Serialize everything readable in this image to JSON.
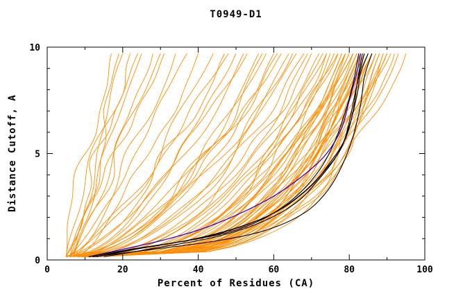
{
  "chart_data": {
    "type": "line",
    "title": "T0949-D1",
    "xlabel": "Percent of Residues (CA)",
    "ylabel": "Distance Cutoff, A",
    "xlim": [
      0,
      100
    ],
    "ylim": [
      0,
      10
    ],
    "xticks_major": [
      0,
      20,
      40,
      60,
      80,
      100
    ],
    "xticks_minor": [
      10,
      30,
      50,
      70,
      90
    ],
    "yticks_major": [
      0,
      5,
      10
    ],
    "yticks_minor": [
      1,
      2,
      3,
      4,
      6,
      7,
      8,
      9
    ],
    "grid": false,
    "legend": null,
    "colors": {
      "orange_curves": "#FF8C00",
      "black_curves": "#000000",
      "blue_curve": "#3300CC",
      "axis": "#000000",
      "text": "#000000",
      "background": "#FFFFFF"
    },
    "y_start": 0.15,
    "y_end": 9.7,
    "orange_param_format": "[percent_at_cutoff_0, percent_at_cutoff_10, shape_exponent]; x(y)=s+(e-s)*t^p, t=(y-y_start)/(y_end-y_start)",
    "series": {
      "orange_curves_param": [
        [
          5,
          17,
          1.2
        ],
        [
          6,
          20,
          1.0
        ],
        [
          5,
          22,
          0.9
        ],
        [
          7,
          25,
          1.1
        ],
        [
          6,
          28,
          0.85
        ],
        [
          5,
          31,
          0.95
        ],
        [
          7,
          34,
          0.8
        ],
        [
          6,
          37,
          0.9
        ],
        [
          8,
          40,
          0.75
        ],
        [
          5,
          24,
          1.3
        ],
        [
          6,
          19,
          0.8
        ],
        [
          7,
          30,
          1.05
        ],
        [
          5,
          44,
          0.7
        ],
        [
          6,
          47,
          0.65
        ],
        [
          7,
          50,
          0.6
        ],
        [
          5,
          53,
          0.68
        ],
        [
          6,
          56,
          0.55
        ],
        [
          8,
          58,
          0.6
        ],
        [
          7,
          60,
          0.5
        ],
        [
          6,
          62,
          0.58
        ],
        [
          5,
          64,
          0.52
        ],
        [
          7,
          66,
          0.48
        ],
        [
          6,
          68,
          0.5
        ],
        [
          8,
          70,
          0.45
        ],
        [
          5,
          48,
          0.75
        ],
        [
          6,
          52,
          0.6
        ],
        [
          7,
          57,
          0.52
        ],
        [
          5,
          61,
          0.55
        ],
        [
          8,
          65,
          0.5
        ],
        [
          6,
          69,
          0.42
        ],
        [
          8,
          72,
          0.42
        ],
        [
          9,
          73,
          0.4
        ],
        [
          10,
          74,
          0.38
        ],
        [
          8,
          75,
          0.36
        ],
        [
          9,
          76,
          0.4
        ],
        [
          10,
          77,
          0.35
        ],
        [
          11,
          78,
          0.33
        ],
        [
          9,
          78,
          0.38
        ],
        [
          8,
          79,
          0.35
        ],
        [
          10,
          79,
          0.3
        ],
        [
          11,
          80,
          0.34
        ],
        [
          9,
          80,
          0.28
        ],
        [
          10,
          81,
          0.32
        ],
        [
          12,
          81,
          0.36
        ],
        [
          9,
          82,
          0.3
        ],
        [
          11,
          82,
          0.27
        ],
        [
          10,
          82,
          0.33
        ],
        [
          12,
          83,
          0.3
        ],
        [
          9,
          83,
          0.26
        ],
        [
          11,
          83,
          0.32
        ],
        [
          10,
          84,
          0.28
        ],
        [
          12,
          84,
          0.31
        ],
        [
          9,
          84,
          0.25
        ],
        [
          11,
          85,
          0.3
        ],
        [
          10,
          85,
          0.27
        ],
        [
          13,
          85,
          0.33
        ],
        [
          11,
          86,
          0.29
        ],
        [
          9,
          86,
          0.25
        ],
        [
          12,
          86,
          0.32
        ],
        [
          10,
          87,
          0.28
        ],
        [
          13,
          87,
          0.3
        ],
        [
          11,
          88,
          0.26
        ],
        [
          9,
          88,
          0.3
        ],
        [
          12,
          89,
          0.27
        ],
        [
          10,
          89,
          0.24
        ],
        [
          13,
          90,
          0.3
        ],
        [
          11,
          90,
          0.26
        ],
        [
          12,
          91,
          0.28
        ],
        [
          10,
          92,
          0.25
        ],
        [
          14,
          93,
          0.3
        ],
        [
          8,
          74,
          0.45
        ],
        [
          9,
          81,
          0.4
        ],
        [
          13,
          79,
          0.37
        ],
        [
          12,
          77,
          0.42
        ],
        [
          12,
          95,
          0.27
        ]
      ],
      "black_curves": [
        [
          [
            13,
            0.15
          ],
          [
            25,
            0.55
          ],
          [
            38,
            0.95
          ],
          [
            50,
            1.5
          ],
          [
            60,
            2.2
          ],
          [
            68,
            3.2
          ],
          [
            74,
            4.3
          ],
          [
            78,
            5.3
          ],
          [
            80,
            6.5
          ],
          [
            81.5,
            7.8
          ],
          [
            83,
            9.0
          ],
          [
            84,
            9.7
          ]
        ],
        [
          [
            15,
            0.15
          ],
          [
            30,
            0.6
          ],
          [
            45,
            1.1
          ],
          [
            57,
            1.8
          ],
          [
            66,
            2.7
          ],
          [
            72,
            3.8
          ],
          [
            77,
            5.0
          ],
          [
            80,
            6.3
          ],
          [
            82,
            7.7
          ],
          [
            83,
            8.8
          ],
          [
            85,
            9.7
          ]
        ],
        [
          [
            12,
            0.15
          ],
          [
            28,
            0.5
          ],
          [
            45,
            0.9
          ],
          [
            58,
            1.4
          ],
          [
            68,
            2.2
          ],
          [
            74,
            3.2
          ],
          [
            78,
            4.4
          ],
          [
            81,
            5.8
          ],
          [
            83,
            7.3
          ],
          [
            84,
            8.6
          ],
          [
            86,
            9.7
          ]
        ],
        [
          [
            14,
            0.2
          ],
          [
            26,
            0.6
          ],
          [
            40,
            1.0
          ],
          [
            52,
            1.6
          ],
          [
            62,
            2.4
          ],
          [
            70,
            3.5
          ],
          [
            75,
            4.6
          ],
          [
            79,
            5.7
          ],
          [
            81,
            7.0
          ],
          [
            82,
            8.2
          ],
          [
            83,
            9.3
          ],
          [
            83.5,
            9.7
          ]
        ],
        [
          [
            11,
            0.15
          ],
          [
            22,
            0.5
          ],
          [
            35,
            0.85
          ],
          [
            48,
            1.3
          ],
          [
            58,
            2.0
          ],
          [
            66,
            3.0
          ],
          [
            72,
            4.2
          ],
          [
            76,
            5.5
          ],
          [
            79,
            7.0
          ],
          [
            81,
            8.3
          ],
          [
            82,
            9.2
          ],
          [
            82.5,
            9.7
          ]
        ]
      ],
      "blue_curve": [
        [
          11,
          0.15
        ],
        [
          20,
          0.5
        ],
        [
          30,
          0.9
        ],
        [
          40,
          1.4
        ],
        [
          50,
          2.1
        ],
        [
          60,
          3.0
        ],
        [
          68,
          4.0
        ],
        [
          74,
          5.0
        ],
        [
          78,
          6.2
        ],
        [
          80,
          7.5
        ],
        [
          82,
          8.8
        ],
        [
          83,
          9.7
        ]
      ]
    }
  }
}
